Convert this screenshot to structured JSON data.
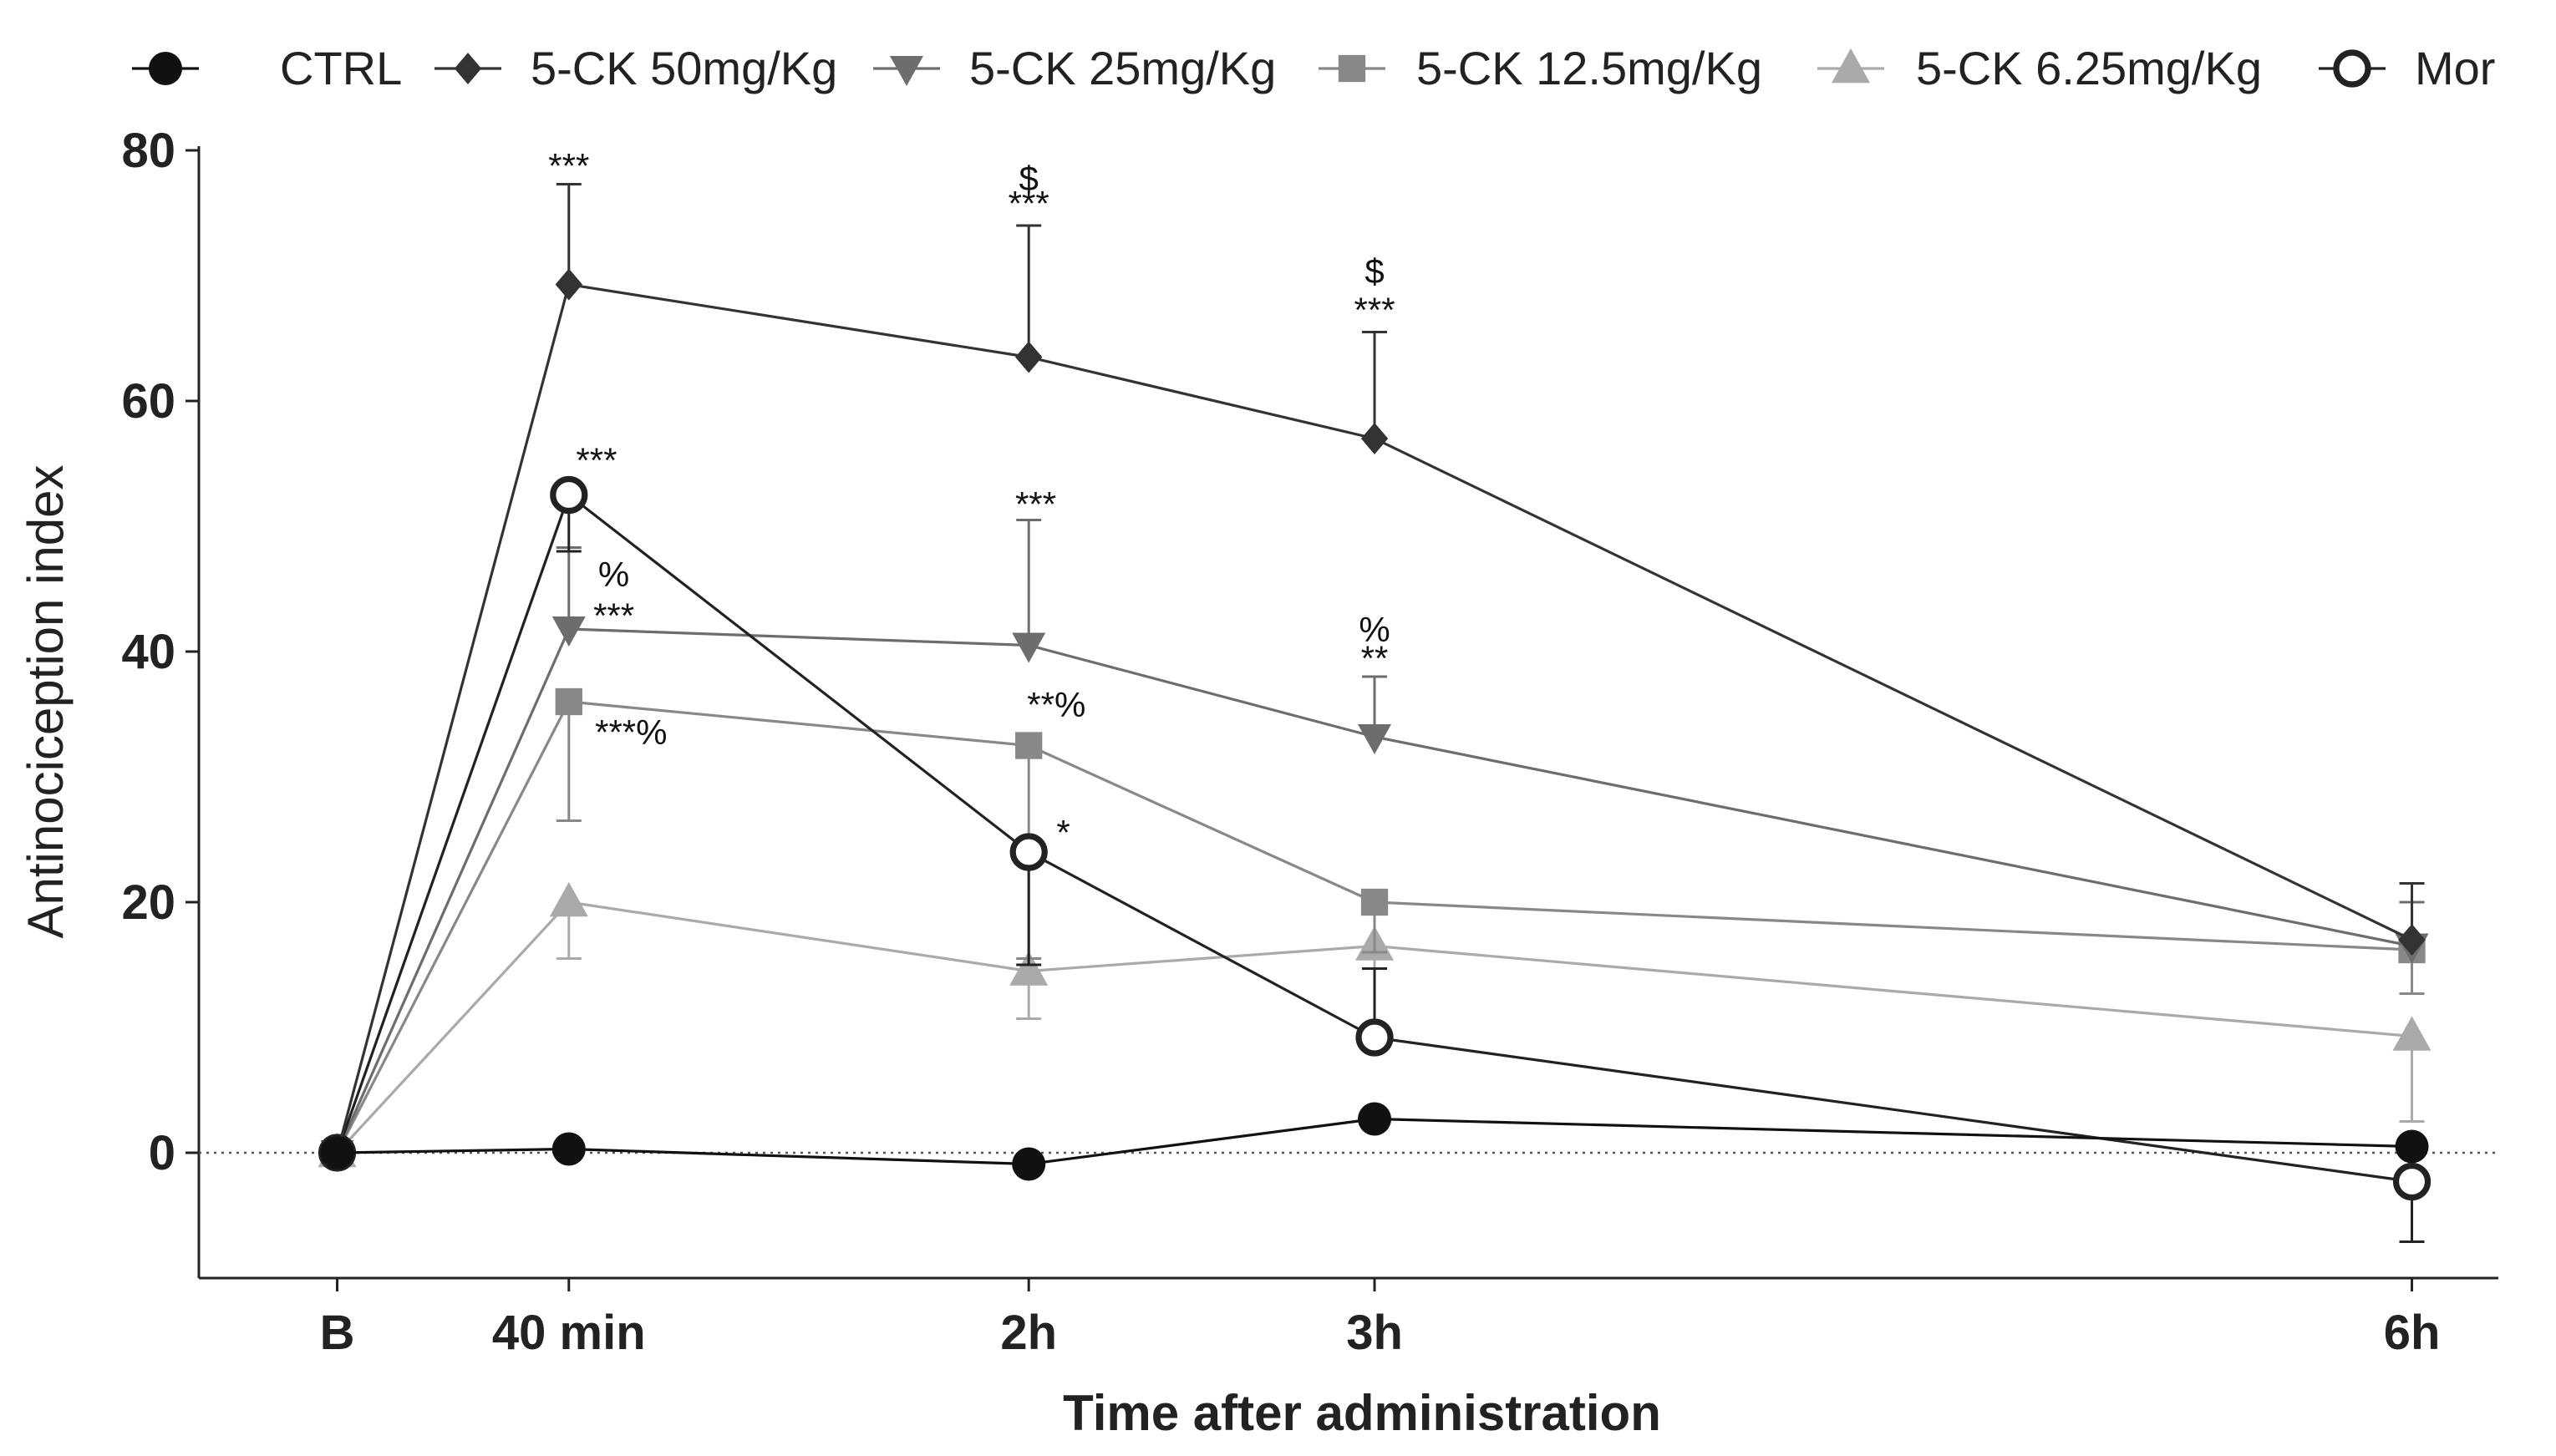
{
  "chart_data": {
    "type": "line",
    "title": "",
    "xlabel": "Time after administration",
    "ylabel": "Antinociception index",
    "ylim": [
      -10,
      80
    ],
    "yticks": [
      0,
      20,
      40,
      60,
      80
    ],
    "xlim": [
      -0.4,
      6.25
    ],
    "categories": [
      "B",
      "40 min",
      "2h",
      "3h",
      "6h"
    ],
    "x": [
      0,
      0.67,
      2,
      3,
      6
    ],
    "zero_reference_line": true,
    "legend_position": "top",
    "series": [
      {
        "name": "5-CK 6.25mg/Kg",
        "marker": "triangle-up",
        "color": "#aaaaaa",
        "values": [
          0,
          20,
          14.5,
          16.5,
          9.3
        ],
        "errors": [
          0,
          4.5,
          3.8,
          1.8,
          6.8
        ],
        "error_dir": [
          1,
          -1,
          -1,
          -1,
          -1
        ]
      },
      {
        "name": "5-CK 12.5mg/Kg",
        "marker": "square",
        "color": "#888888",
        "values": [
          0,
          36,
          32.5,
          20,
          16.2
        ],
        "errors": [
          0,
          9.5,
          17,
          4,
          3.5
        ],
        "error_dir": [
          1,
          -1,
          -1,
          -1,
          -1
        ]
      },
      {
        "name": "5-CK 25mg/Kg",
        "marker": "triangle-down",
        "color": "#6d6d6d",
        "values": [
          0,
          41.8,
          40.5,
          33.2,
          16.5
        ],
        "errors": [
          0,
          6.5,
          10,
          4.8,
          3.5
        ],
        "error_dir": [
          1,
          1,
          1,
          1,
          1
        ]
      },
      {
        "name": "Mor",
        "marker": "circle-open",
        "color": "#222222",
        "values": [
          0,
          52.5,
          24,
          9.2,
          -2.3
        ],
        "errors": [
          0,
          4.5,
          9,
          5.5,
          4.8
        ],
        "error_dir": [
          1,
          -1,
          -1,
          1,
          -1
        ]
      },
      {
        "name": "5-CK 50mg/Kg",
        "marker": "diamond",
        "color": "#333333",
        "values": [
          0,
          69.3,
          63.5,
          57,
          17
        ],
        "errors": [
          0,
          8,
          10.5,
          8.5,
          4.5
        ],
        "error_dir": [
          1,
          1,
          1,
          1,
          1
        ]
      },
      {
        "name": "CTRL",
        "marker": "circle",
        "color": "#111111",
        "values": [
          0,
          0.3,
          -0.9,
          2.7,
          0.5
        ],
        "errors": [
          0,
          1.8,
          2.8,
          1.6,
          0
        ],
        "error_dir": [
          1,
          0,
          0,
          0,
          1
        ]
      }
    ],
    "legend_order": [
      "CTRL",
      "5-CK 50mg/Kg",
      "5-CK 25mg/Kg",
      "5-CK 12.5mg/Kg",
      "5-CK 6.25mg/Kg",
      "Mor"
    ],
    "annotations": [
      {
        "text": "***",
        "x": 0.67,
        "y": 77.8
      },
      {
        "text": "$",
        "x": 2,
        "y": 76.8
      },
      {
        "text": "***",
        "x": 2,
        "y": 74.8
      },
      {
        "text": "$",
        "x": 3,
        "y": 69.4
      },
      {
        "text": "***",
        "x": 3,
        "y": 66.3
      },
      {
        "text": "***",
        "x": 0.75,
        "y": 54.3
      },
      {
        "text": "%",
        "x": 0.8,
        "y": 45.2
      },
      {
        "text": "***",
        "x": 0.8,
        "y": 41.9
      },
      {
        "text": "***",
        "x": 2.02,
        "y": 50.8
      },
      {
        "text": "%",
        "x": 3,
        "y": 40.8
      },
      {
        "text": "**",
        "x": 3,
        "y": 38.5
      },
      {
        "text": "**%",
        "x": 2.08,
        "y": 34.8
      },
      {
        "text": "***%",
        "x": 0.85,
        "y": 32.6
      },
      {
        "text": "*",
        "x": 2.1,
        "y": 24.6
      }
    ]
  }
}
